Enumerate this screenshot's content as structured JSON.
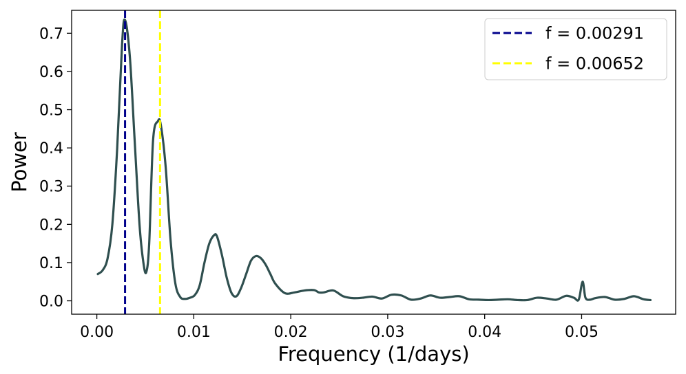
{
  "chart_data": {
    "type": "line",
    "xlabel": "Frequency (1/days)",
    "ylabel": "Power",
    "xlim": [
      -0.0026,
      0.0597
    ],
    "ylim": [
      -0.035,
      0.76
    ],
    "xticks": [
      0.0,
      0.01,
      0.02,
      0.03,
      0.04,
      0.05
    ],
    "xtick_labels": [
      "0.00",
      "0.01",
      "0.02",
      "0.03",
      "0.04",
      "0.05"
    ],
    "yticks": [
      0.0,
      0.1,
      0.2,
      0.3,
      0.4,
      0.5,
      0.6,
      0.7
    ],
    "ytick_labels": [
      "0.0",
      "0.1",
      "0.2",
      "0.3",
      "0.4",
      "0.5",
      "0.6",
      "0.7"
    ],
    "grid": false,
    "legend_position": "top-right",
    "series": [
      {
        "color": "#2f4f4f",
        "x": [
          0.0001,
          0.0006,
          0.0011,
          0.0016,
          0.0021,
          0.0026,
          0.0029,
          0.0034,
          0.0039,
          0.0044,
          0.0048,
          0.0051,
          0.0054,
          0.0058,
          0.0063,
          0.0066,
          0.0071,
          0.0076,
          0.0081,
          0.0086,
          0.0091,
          0.0096,
          0.0101,
          0.0106,
          0.0111,
          0.0116,
          0.0121,
          0.0124,
          0.0129,
          0.0134,
          0.0139,
          0.0144,
          0.0149,
          0.0154,
          0.0159,
          0.0164,
          0.0169,
          0.0174,
          0.0179,
          0.0184,
          0.0194,
          0.0204,
          0.0214,
          0.0224,
          0.0229,
          0.0234,
          0.0244,
          0.0254,
          0.0264,
          0.0274,
          0.0284,
          0.0294,
          0.0304,
          0.0314,
          0.0324,
          0.0334,
          0.0344,
          0.0354,
          0.0364,
          0.0374,
          0.0384,
          0.0394,
          0.0404,
          0.0414,
          0.0424,
          0.0434,
          0.0444,
          0.0454,
          0.0464,
          0.0474,
          0.0484,
          0.0492,
          0.0497,
          0.0501,
          0.0504,
          0.0509,
          0.0514,
          0.0524,
          0.0534,
          0.0544,
          0.0554,
          0.0564,
          0.0571
        ],
        "y": [
          0.07,
          0.08,
          0.11,
          0.2,
          0.4,
          0.67,
          0.735,
          0.64,
          0.42,
          0.2,
          0.1,
          0.075,
          0.15,
          0.42,
          0.47,
          0.46,
          0.35,
          0.16,
          0.045,
          0.01,
          0.005,
          0.008,
          0.015,
          0.04,
          0.1,
          0.15,
          0.172,
          0.168,
          0.12,
          0.06,
          0.02,
          0.012,
          0.035,
          0.07,
          0.105,
          0.117,
          0.112,
          0.095,
          0.07,
          0.045,
          0.02,
          0.022,
          0.027,
          0.028,
          0.022,
          0.022,
          0.027,
          0.012,
          0.007,
          0.008,
          0.011,
          0.006,
          0.016,
          0.014,
          0.003,
          0.006,
          0.014,
          0.008,
          0.01,
          0.012,
          0.004,
          0.003,
          0.002,
          0.003,
          0.004,
          0.002,
          0.002,
          0.008,
          0.006,
          0.003,
          0.013,
          0.008,
          0.003,
          0.05,
          0.008,
          0.003,
          0.007,
          0.01,
          0.003,
          0.005,
          0.012,
          0.004,
          0.002
        ]
      }
    ],
    "vlines": [
      {
        "x": 0.00291,
        "label": "f = 0.00291",
        "color": "#00008b"
      },
      {
        "x": 0.00652,
        "label": "f = 0.00652",
        "color": "#ffff00"
      }
    ]
  }
}
